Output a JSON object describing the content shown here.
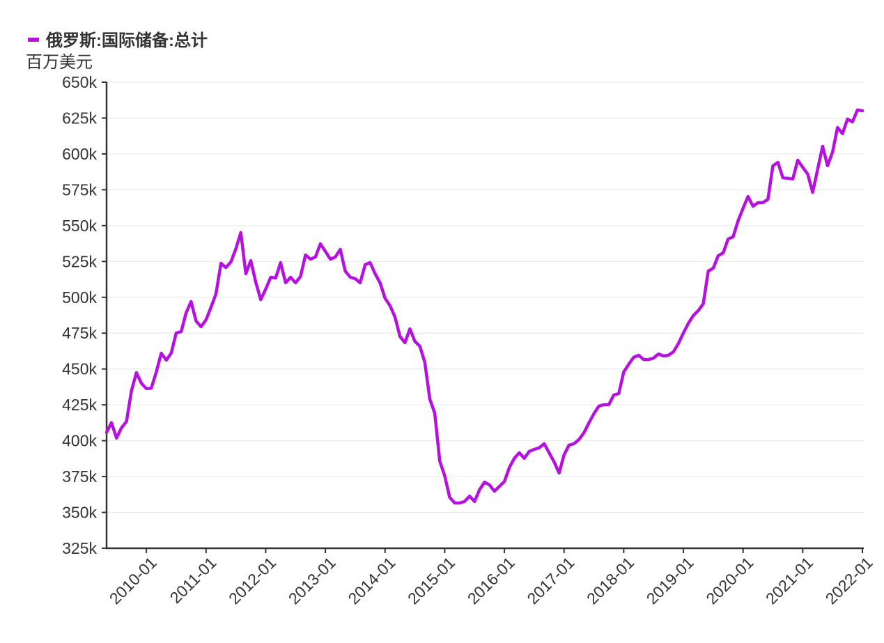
{
  "chart_data": {
    "type": "line",
    "ylabel": "百万美元",
    "ylim": [
      325000,
      650000
    ],
    "grid": true,
    "legend_position": "top-left",
    "y_ticks": [
      650000,
      625000,
      600000,
      575000,
      550000,
      525000,
      500000,
      475000,
      450000,
      425000,
      400000,
      375000,
      350000,
      325000
    ],
    "y_tick_labels": [
      "650k",
      "625k",
      "600k",
      "575k",
      "550k",
      "525k",
      "500k",
      "475k",
      "450k",
      "425k",
      "400k",
      "375k",
      "350k",
      "325k"
    ],
    "x_tick_labels": [
      "2010-01",
      "2011-01",
      "2012-01",
      "2013-01",
      "2014-01",
      "2015-01",
      "2016-01",
      "2017-01",
      "2018-01",
      "2019-01",
      "2020-01",
      "2021-01",
      "2022-01"
    ],
    "x": [
      "2009-05",
      "2009-06",
      "2009-07",
      "2009-08",
      "2009-09",
      "2009-10",
      "2009-11",
      "2009-12",
      "2010-01",
      "2010-02",
      "2010-03",
      "2010-04",
      "2010-05",
      "2010-06",
      "2010-07",
      "2010-08",
      "2010-09",
      "2010-10",
      "2010-11",
      "2010-12",
      "2011-01",
      "2011-02",
      "2011-03",
      "2011-04",
      "2011-05",
      "2011-06",
      "2011-07",
      "2011-08",
      "2011-09",
      "2011-10",
      "2011-11",
      "2011-12",
      "2012-01",
      "2012-02",
      "2012-03",
      "2012-04",
      "2012-05",
      "2012-06",
      "2012-07",
      "2012-08",
      "2012-09",
      "2012-10",
      "2012-11",
      "2012-12",
      "2013-01",
      "2013-02",
      "2013-03",
      "2013-04",
      "2013-05",
      "2013-06",
      "2013-07",
      "2013-08",
      "2013-09",
      "2013-10",
      "2013-11",
      "2013-12",
      "2014-01",
      "2014-02",
      "2014-03",
      "2014-04",
      "2014-05",
      "2014-06",
      "2014-07",
      "2014-08",
      "2014-09",
      "2014-10",
      "2014-11",
      "2014-12",
      "2015-01",
      "2015-02",
      "2015-03",
      "2015-04",
      "2015-05",
      "2015-06",
      "2015-07",
      "2015-08",
      "2015-09",
      "2015-10",
      "2015-11",
      "2015-12",
      "2016-01",
      "2016-02",
      "2016-03",
      "2016-04",
      "2016-05",
      "2016-06",
      "2016-07",
      "2016-08",
      "2016-09",
      "2016-10",
      "2016-11",
      "2016-12",
      "2017-01",
      "2017-02",
      "2017-03",
      "2017-04",
      "2017-05",
      "2017-06",
      "2017-07",
      "2017-08",
      "2017-09",
      "2017-10",
      "2017-11",
      "2017-12",
      "2018-01",
      "2018-02",
      "2018-03",
      "2018-04",
      "2018-05",
      "2018-06",
      "2018-07",
      "2018-08",
      "2018-09",
      "2018-10",
      "2018-11",
      "2018-12",
      "2019-01",
      "2019-02",
      "2019-03",
      "2019-04",
      "2019-05",
      "2019-06",
      "2019-07",
      "2019-08",
      "2019-09",
      "2019-10",
      "2019-11",
      "2019-12",
      "2020-01",
      "2020-02",
      "2020-03",
      "2020-04",
      "2020-05",
      "2020-06",
      "2020-07",
      "2020-08",
      "2020-09",
      "2020-10",
      "2020-11",
      "2020-12",
      "2021-01",
      "2021-02",
      "2021-03",
      "2021-04",
      "2021-05",
      "2021-06",
      "2021-07",
      "2021-08",
      "2021-09",
      "2021-10",
      "2021-11",
      "2021-12",
      "2022-01"
    ],
    "series": [
      {
        "name": "俄罗斯:国际储备:总计",
        "color": "#b512e0",
        "values": [
          405800,
          412600,
          401800,
          409000,
          413400,
          434800,
          447400,
          440100,
          436300,
          436700,
          447900,
          461000,
          456200,
          461000,
          475100,
          476100,
          489200,
          497000,
          483400,
          479500,
          484300,
          493100,
          502300,
          523700,
          520800,
          524700,
          533900,
          545100,
          516400,
          525600,
          510600,
          498400,
          505700,
          514000,
          513500,
          524200,
          510100,
          514000,
          510100,
          514500,
          529500,
          526600,
          528100,
          537300,
          532000,
          526600,
          528100,
          533400,
          518300,
          514000,
          513000,
          510100,
          522700,
          524200,
          516400,
          510100,
          499400,
          494100,
          486300,
          472700,
          468300,
          478000,
          469300,
          465900,
          454700,
          429000,
          419200,
          385700,
          375500,
          360500,
          356600,
          356600,
          357600,
          361400,
          357600,
          365800,
          371100,
          369200,
          364800,
          368200,
          371600,
          381300,
          387700,
          391600,
          387700,
          392500,
          394000,
          395000,
          397900,
          391600,
          385200,
          377500,
          390100,
          396900,
          397900,
          400800,
          405600,
          412400,
          418800,
          424100,
          425100,
          425100,
          431900,
          432800,
          447900,
          453300,
          458100,
          459600,
          456600,
          456600,
          457600,
          460500,
          459100,
          459600,
          462000,
          467800,
          475100,
          481900,
          487300,
          490700,
          495500,
          518300,
          520300,
          529000,
          531000,
          540700,
          542200,
          553300,
          562100,
          570300,
          563500,
          566000,
          566000,
          568400,
          591700,
          594100,
          583400,
          583000,
          582500,
          595600,
          590700,
          585900,
          573200,
          589300,
          605300,
          591700,
          601400,
          618400,
          614100,
          624300,
          622300,
          630600,
          630100
        ]
      }
    ]
  }
}
